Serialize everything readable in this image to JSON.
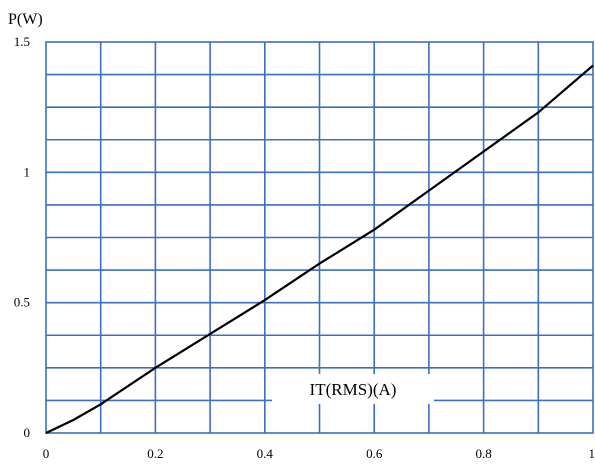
{
  "chart_data": {
    "type": "line",
    "ylabel": "P(W)",
    "xlabel": "IT(RMS)(A)",
    "xlim": [
      0,
      1
    ],
    "ylim": [
      0,
      1.5
    ],
    "grid": true,
    "x_ticks": [
      "0",
      "0.2",
      "0.4",
      "0.6",
      "0.8",
      "1"
    ],
    "y_ticks": [
      "0",
      "0.5",
      "1",
      "1.5"
    ],
    "series": [
      {
        "x": [
          0,
          0.05,
          0.1,
          0.2,
          0.3,
          0.4,
          0.5,
          0.6,
          0.7,
          0.8,
          0.9,
          1.0
        ],
        "y": [
          0,
          0.05,
          0.11,
          0.25,
          0.38,
          0.51,
          0.65,
          0.78,
          0.93,
          1.08,
          1.23,
          1.41
        ]
      }
    ]
  }
}
